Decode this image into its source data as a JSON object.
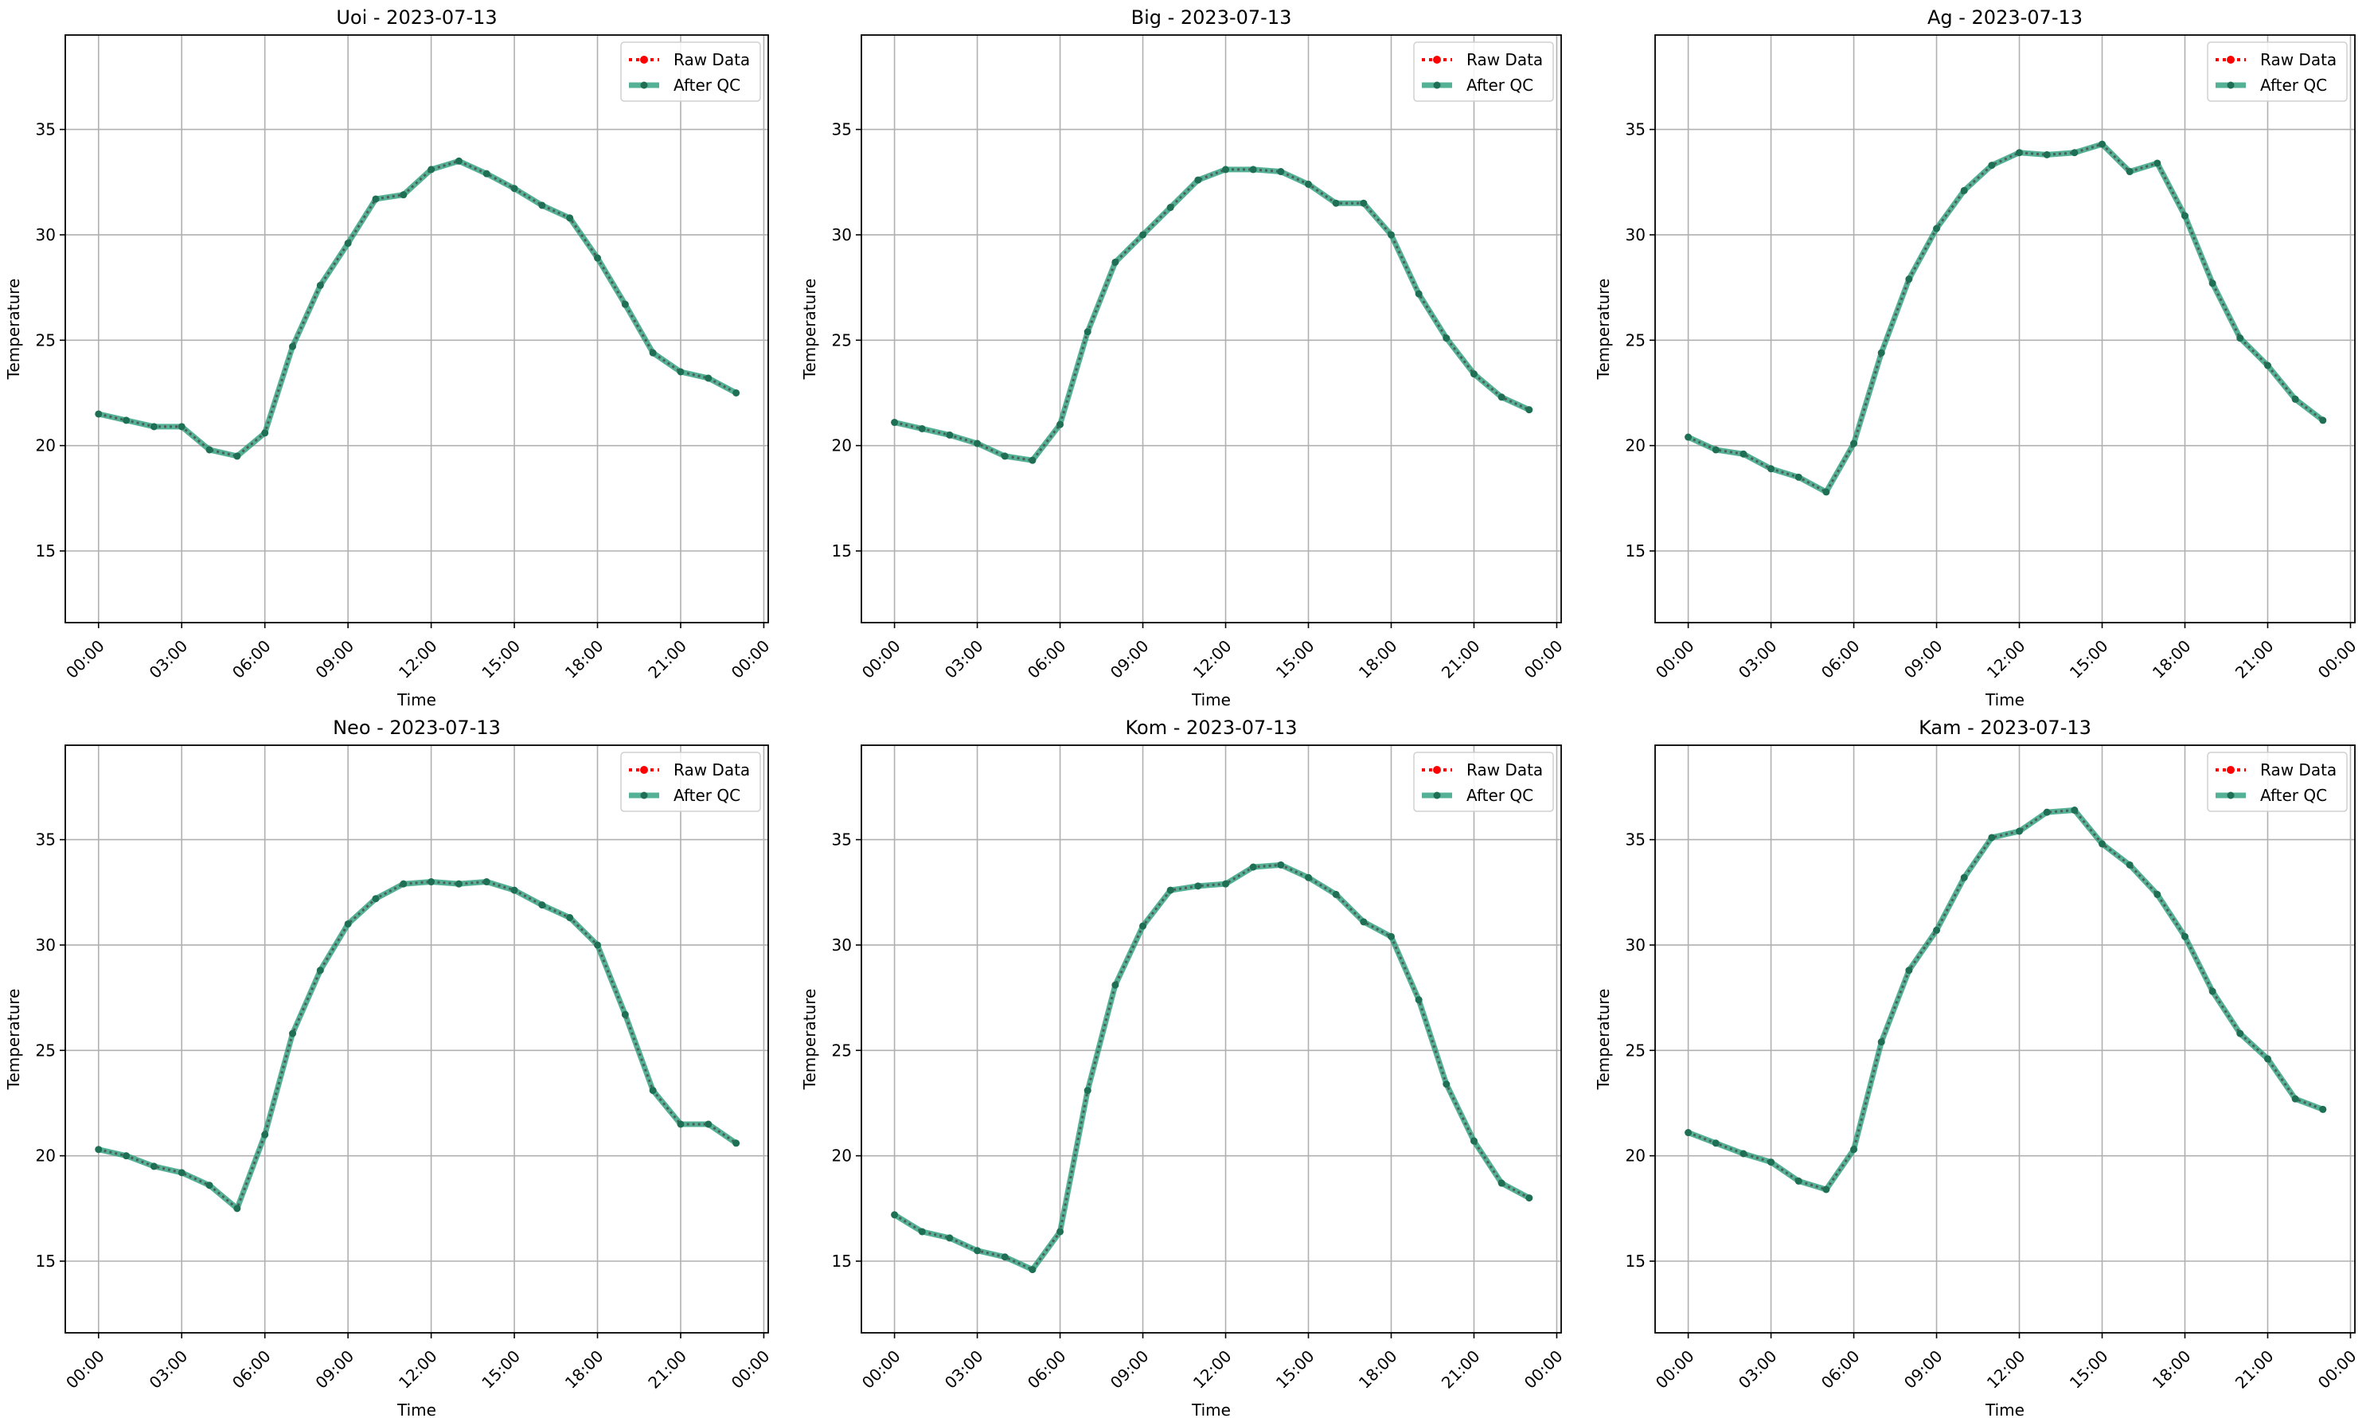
{
  "chart_data": [
    {
      "type": "line",
      "title": "Uoi - 2023-07-13",
      "xlabel": "Time",
      "ylabel": "Temperature",
      "x_hours": [
        0,
        1,
        2,
        3,
        4,
        5,
        6,
        7,
        8,
        9,
        10,
        11,
        12,
        13,
        14,
        15,
        16,
        17,
        18,
        19,
        20,
        21,
        22,
        23
      ],
      "series": [
        {
          "name": "Raw Data",
          "values": [
            21.5,
            21.2,
            20.9,
            20.9,
            19.8,
            19.5,
            20.6,
            24.7,
            27.6,
            29.6,
            31.7,
            31.9,
            33.1,
            33.5,
            32.9,
            32.2,
            31.4,
            30.8,
            28.9,
            26.7,
            24.4,
            23.5,
            23.2,
            22.5
          ]
        },
        {
          "name": "After QC",
          "values": [
            21.5,
            21.2,
            20.9,
            20.9,
            19.8,
            19.5,
            20.6,
            24.7,
            27.6,
            29.6,
            31.7,
            31.9,
            33.1,
            33.5,
            32.9,
            32.2,
            31.4,
            30.8,
            28.9,
            26.7,
            24.4,
            23.5,
            23.2,
            22.5
          ]
        }
      ]
    },
    {
      "type": "line",
      "title": "Big - 2023-07-13",
      "xlabel": "Time",
      "ylabel": "Temperature",
      "x_hours": [
        0,
        1,
        2,
        3,
        4,
        5,
        6,
        7,
        8,
        9,
        10,
        11,
        12,
        13,
        14,
        15,
        16,
        17,
        18,
        19,
        20,
        21,
        22,
        23
      ],
      "series": [
        {
          "name": "Raw Data",
          "values": [
            21.1,
            20.8,
            20.5,
            20.1,
            19.5,
            19.3,
            21.0,
            25.4,
            28.7,
            30.0,
            31.3,
            32.6,
            33.1,
            33.1,
            33.0,
            32.4,
            31.5,
            31.5,
            30.0,
            27.2,
            25.1,
            23.4,
            22.3,
            21.7
          ]
        },
        {
          "name": "After QC",
          "values": [
            21.1,
            20.8,
            20.5,
            20.1,
            19.5,
            19.3,
            21.0,
            25.4,
            28.7,
            30.0,
            31.3,
            32.6,
            33.1,
            33.1,
            33.0,
            32.4,
            31.5,
            31.5,
            30.0,
            27.2,
            25.1,
            23.4,
            22.3,
            21.7
          ]
        }
      ]
    },
    {
      "type": "line",
      "title": "Ag - 2023-07-13",
      "xlabel": "Time",
      "ylabel": "Temperature",
      "x_hours": [
        0,
        1,
        2,
        3,
        4,
        5,
        6,
        7,
        8,
        9,
        10,
        11,
        12,
        13,
        14,
        15,
        16,
        17,
        18,
        19,
        20,
        21,
        22,
        23
      ],
      "series": [
        {
          "name": "Raw Data",
          "values": [
            20.4,
            19.8,
            19.6,
            18.9,
            18.5,
            17.8,
            20.1,
            24.4,
            27.9,
            30.3,
            32.1,
            33.3,
            33.9,
            33.8,
            33.9,
            34.3,
            33.0,
            33.4,
            30.9,
            27.7,
            25.1,
            23.8,
            22.2,
            21.2
          ]
        },
        {
          "name": "After QC",
          "values": [
            20.4,
            19.8,
            19.6,
            18.9,
            18.5,
            17.8,
            20.1,
            24.4,
            27.9,
            30.3,
            32.1,
            33.3,
            33.9,
            33.8,
            33.9,
            34.3,
            33.0,
            33.4,
            30.9,
            27.7,
            25.1,
            23.8,
            22.2,
            21.2
          ]
        }
      ]
    },
    {
      "type": "line",
      "title": "Neo - 2023-07-13",
      "xlabel": "Time",
      "ylabel": "Temperature",
      "x_hours": [
        0,
        1,
        2,
        3,
        4,
        5,
        6,
        7,
        8,
        9,
        10,
        11,
        12,
        13,
        14,
        15,
        16,
        17,
        18,
        19,
        20,
        21,
        22,
        23
      ],
      "series": [
        {
          "name": "Raw Data",
          "values": [
            20.3,
            20.0,
            19.5,
            19.2,
            18.6,
            17.5,
            21.0,
            25.8,
            28.8,
            31.0,
            32.2,
            32.9,
            33.0,
            32.9,
            33.0,
            32.6,
            31.9,
            31.3,
            30.0,
            26.7,
            23.1,
            21.5,
            21.5,
            20.6
          ]
        },
        {
          "name": "After QC",
          "values": [
            20.3,
            20.0,
            19.5,
            19.2,
            18.6,
            17.5,
            21.0,
            25.8,
            28.8,
            31.0,
            32.2,
            32.9,
            33.0,
            32.9,
            33.0,
            32.6,
            31.9,
            31.3,
            30.0,
            26.7,
            23.1,
            21.5,
            21.5,
            20.6
          ]
        }
      ]
    },
    {
      "type": "line",
      "title": "Kom - 2023-07-13",
      "xlabel": "Time",
      "ylabel": "Temperature",
      "x_hours": [
        0,
        1,
        2,
        3,
        4,
        5,
        6,
        7,
        8,
        9,
        10,
        11,
        12,
        13,
        14,
        15,
        16,
        17,
        18,
        19,
        20,
        21,
        22,
        23
      ],
      "series": [
        {
          "name": "Raw Data",
          "values": [
            17.2,
            16.4,
            16.1,
            15.5,
            15.2,
            14.6,
            16.4,
            23.1,
            28.1,
            30.9,
            32.6,
            32.8,
            32.9,
            33.7,
            33.8,
            33.2,
            32.4,
            31.1,
            30.4,
            27.4,
            23.4,
            20.7,
            18.7,
            18.0
          ]
        },
        {
          "name": "After QC",
          "values": [
            17.2,
            16.4,
            16.1,
            15.5,
            15.2,
            14.6,
            16.4,
            23.1,
            28.1,
            30.9,
            32.6,
            32.8,
            32.9,
            33.7,
            33.8,
            33.2,
            32.4,
            31.1,
            30.4,
            27.4,
            23.4,
            20.7,
            18.7,
            18.0
          ]
        }
      ]
    },
    {
      "type": "line",
      "title": "Kam - 2023-07-13",
      "xlabel": "Time",
      "ylabel": "Temperature",
      "x_hours": [
        0,
        1,
        2,
        3,
        4,
        5,
        6,
        7,
        8,
        9,
        10,
        11,
        12,
        13,
        14,
        15,
        16,
        17,
        18,
        19,
        20,
        21,
        22,
        23
      ],
      "series": [
        {
          "name": "Raw Data",
          "values": [
            21.1,
            20.6,
            20.1,
            19.7,
            18.8,
            18.4,
            20.3,
            25.4,
            28.8,
            30.7,
            33.2,
            35.1,
            35.4,
            36.3,
            36.4,
            34.8,
            33.8,
            32.4,
            30.4,
            27.8,
            25.8,
            24.6,
            22.7,
            22.2
          ]
        },
        {
          "name": "After QC",
          "values": [
            21.1,
            20.6,
            20.1,
            19.7,
            18.8,
            18.4,
            20.3,
            25.4,
            28.8,
            30.7,
            33.2,
            35.1,
            35.4,
            36.3,
            36.4,
            34.8,
            33.8,
            32.4,
            30.4,
            27.8,
            25.8,
            24.6,
            22.7,
            22.2
          ]
        }
      ]
    }
  ],
  "axes": {
    "ylim": [
      11.6,
      39.48
    ],
    "xlim_hours": [
      -1.2,
      24.16
    ],
    "yticks": [
      15,
      20,
      25,
      30,
      35
    ],
    "xtick_hours": [
      0,
      3,
      6,
      9,
      12,
      15,
      18,
      21,
      24
    ],
    "xtick_labels": [
      "00:00",
      "03:00",
      "06:00",
      "09:00",
      "12:00",
      "15:00",
      "18:00",
      "21:00",
      "00:00"
    ],
    "grid": true,
    "legend_placement": "top-right"
  },
  "colors": {
    "raw": "#ff0000",
    "qc": "#2a9d7a",
    "qc_marker": "#1f6f55",
    "grid": "#b0b0b0"
  }
}
